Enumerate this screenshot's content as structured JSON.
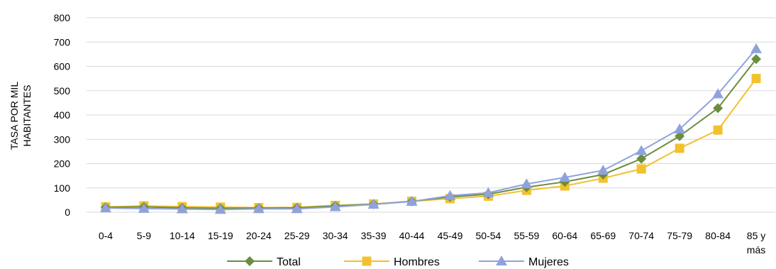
{
  "chart_data": {
    "type": "line",
    "ylabel_lines": [
      "TASA POR MIL",
      "HABITANTES"
    ],
    "ylim": [
      0,
      800
    ],
    "yticks": [
      0,
      100,
      200,
      300,
      400,
      500,
      600,
      700,
      800
    ],
    "grid": true,
    "legend_position": "bottom",
    "categories": [
      [
        "0-4"
      ],
      [
        "5-9"
      ],
      [
        "10-14"
      ],
      [
        "15-19"
      ],
      [
        "20-24"
      ],
      [
        "25-29"
      ],
      [
        "30-34"
      ],
      [
        "35-39"
      ],
      [
        "40-44"
      ],
      [
        "45-49"
      ],
      [
        "50-54"
      ],
      [
        "55-59"
      ],
      [
        "60-64"
      ],
      [
        "65-69"
      ],
      [
        "70-74"
      ],
      [
        "75-79"
      ],
      [
        "80-84"
      ],
      [
        "85 y",
        "más"
      ]
    ],
    "series": [
      {
        "name": "Total",
        "color": "#6b8e3e",
        "marker": "diamond",
        "values": [
          20,
          22,
          18,
          16,
          17,
          18,
          26,
          33,
          45,
          63,
          74,
          103,
          125,
          155,
          220,
          313,
          428,
          630
        ]
      },
      {
        "name": "Hombres",
        "color": "#f2c12e",
        "marker": "square",
        "values": [
          22,
          26,
          23,
          21,
          19,
          20,
          28,
          34,
          45,
          56,
          66,
          90,
          108,
          140,
          178,
          263,
          338,
          550
        ]
      },
      {
        "name": "Mujeres",
        "color": "#8fa2dc",
        "marker": "triangle",
        "values": [
          17,
          15,
          13,
          11,
          14,
          14,
          22,
          32,
          44,
          68,
          80,
          116,
          143,
          172,
          253,
          342,
          486,
          672
        ]
      }
    ]
  }
}
